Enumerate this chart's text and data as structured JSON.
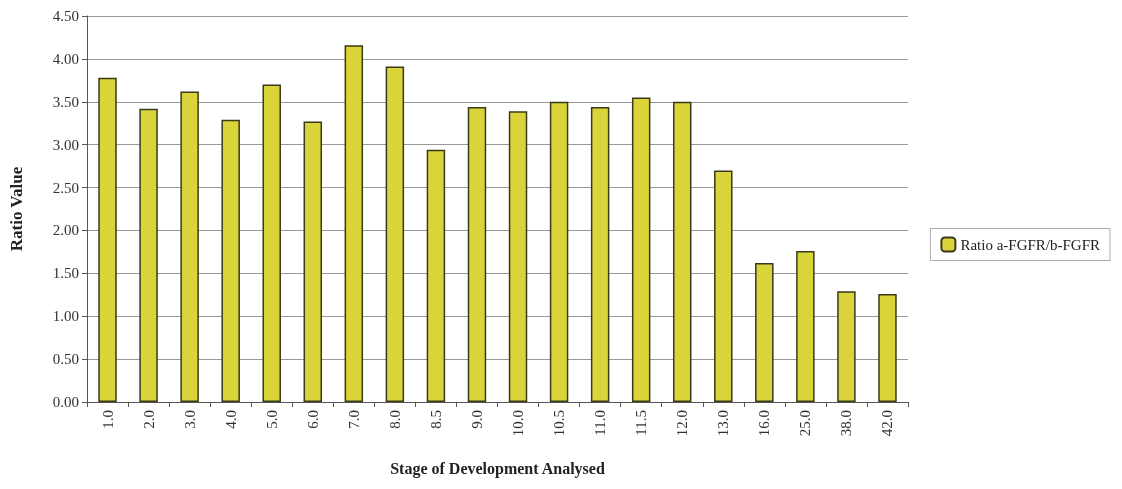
{
  "chart_data": {
    "type": "bar",
    "xlabel": "Stage of Development Analysed",
    "ylabel": "Ratio Value",
    "categories": [
      "1.0",
      "2.0",
      "3.0",
      "4.0",
      "5.0",
      "6.0",
      "7.0",
      "8.0",
      "8.5",
      "9.0",
      "10.0",
      "10.5",
      "11.0",
      "11.5",
      "12.0",
      "13.0",
      "16.0",
      "25.0",
      "38.0",
      "42.0"
    ],
    "series": [
      {
        "name": "Ratio a-FGFR/b-FGFR",
        "color": "#d9d43a",
        "values": [
          3.78,
          3.42,
          3.62,
          3.29,
          3.7,
          3.27,
          4.16,
          3.91,
          2.94,
          3.44,
          3.39,
          3.5,
          3.44,
          3.55,
          3.5,
          2.7,
          1.62,
          1.76,
          1.29,
          1.26
        ]
      }
    ],
    "ylim": [
      0,
      4.5
    ],
    "yticks": [
      {
        "value": 0,
        "label": "0.00"
      },
      {
        "value": 0.5,
        "label": "0.50"
      },
      {
        "value": 1,
        "label": "1.00"
      },
      {
        "value": 1.5,
        "label": "1.50"
      },
      {
        "value": 2,
        "label": "2.00"
      },
      {
        "value": 2.5,
        "label": "2.50"
      },
      {
        "value": 3,
        "label": "3.00"
      },
      {
        "value": 3.5,
        "label": "3.50"
      },
      {
        "value": 4,
        "label": "4.00"
      },
      {
        "value": 4.5,
        "label": "4.50"
      }
    ],
    "grid": "y",
    "legend": "right"
  }
}
